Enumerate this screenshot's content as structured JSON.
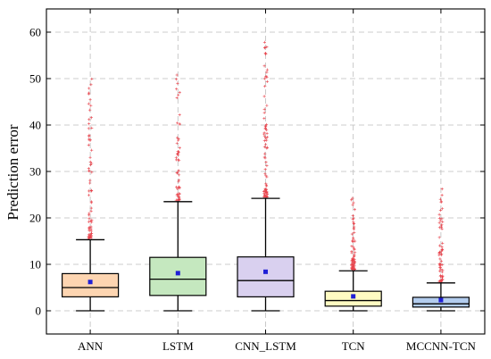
{
  "chart_data": {
    "type": "box",
    "title": "",
    "xlabel": "",
    "ylabel": "Prediction error",
    "ylim": [
      -5,
      65
    ],
    "yticks": [
      0,
      10,
      20,
      30,
      40,
      50,
      60
    ],
    "grid": true,
    "categories": [
      "ANN",
      "LSTM",
      "CNN_LSTM",
      "TCN",
      "MCCNN-TCN"
    ],
    "boxes": [
      {
        "label": "ANN",
        "whisker_low": 0,
        "q1": 3.0,
        "median": 5.0,
        "q3": 8.0,
        "whisker_high": 15.3,
        "mean": 6.2,
        "fill": "#fdd5b1",
        "outlier_min": 15.3,
        "outlier_max": 50.0,
        "outlier_count": 70
      },
      {
        "label": "LSTM",
        "whisker_low": 0,
        "q1": 3.3,
        "median": 6.8,
        "q3": 11.5,
        "whisker_high": 23.5,
        "mean": 8.1,
        "fill": "#c5e8bf",
        "outlier_min": 23.5,
        "outlier_max": 51.5,
        "outlier_count": 55
      },
      {
        "label": "CNN_LSTM",
        "whisker_low": 0,
        "q1": 3.0,
        "median": 6.5,
        "q3": 11.6,
        "whisker_high": 24.2,
        "mean": 8.4,
        "fill": "#d9d0ef",
        "outlier_min": 24.2,
        "outlier_max": 58.5,
        "outlier_count": 75
      },
      {
        "label": "TCN",
        "whisker_low": 0,
        "q1": 1.0,
        "median": 2.2,
        "q3": 4.2,
        "whisker_high": 8.6,
        "mean": 3.1,
        "fill": "#fffbc2",
        "outlier_min": 8.6,
        "outlier_max": 25.5,
        "outlier_count": 70
      },
      {
        "label": "MCCNN-TCN",
        "whisker_low": 0,
        "q1": 0.8,
        "median": 1.5,
        "q3": 2.9,
        "whisker_high": 6.0,
        "mean": 2.3,
        "fill": "#b3cdee",
        "outlier_min": 6.0,
        "outlier_max": 27.0,
        "outlier_count": 65
      }
    ],
    "colors": {
      "outlier": "#e8414a",
      "mean": "#1f1fd6",
      "grid": "#bdbdbd",
      "line": "#000000"
    }
  }
}
